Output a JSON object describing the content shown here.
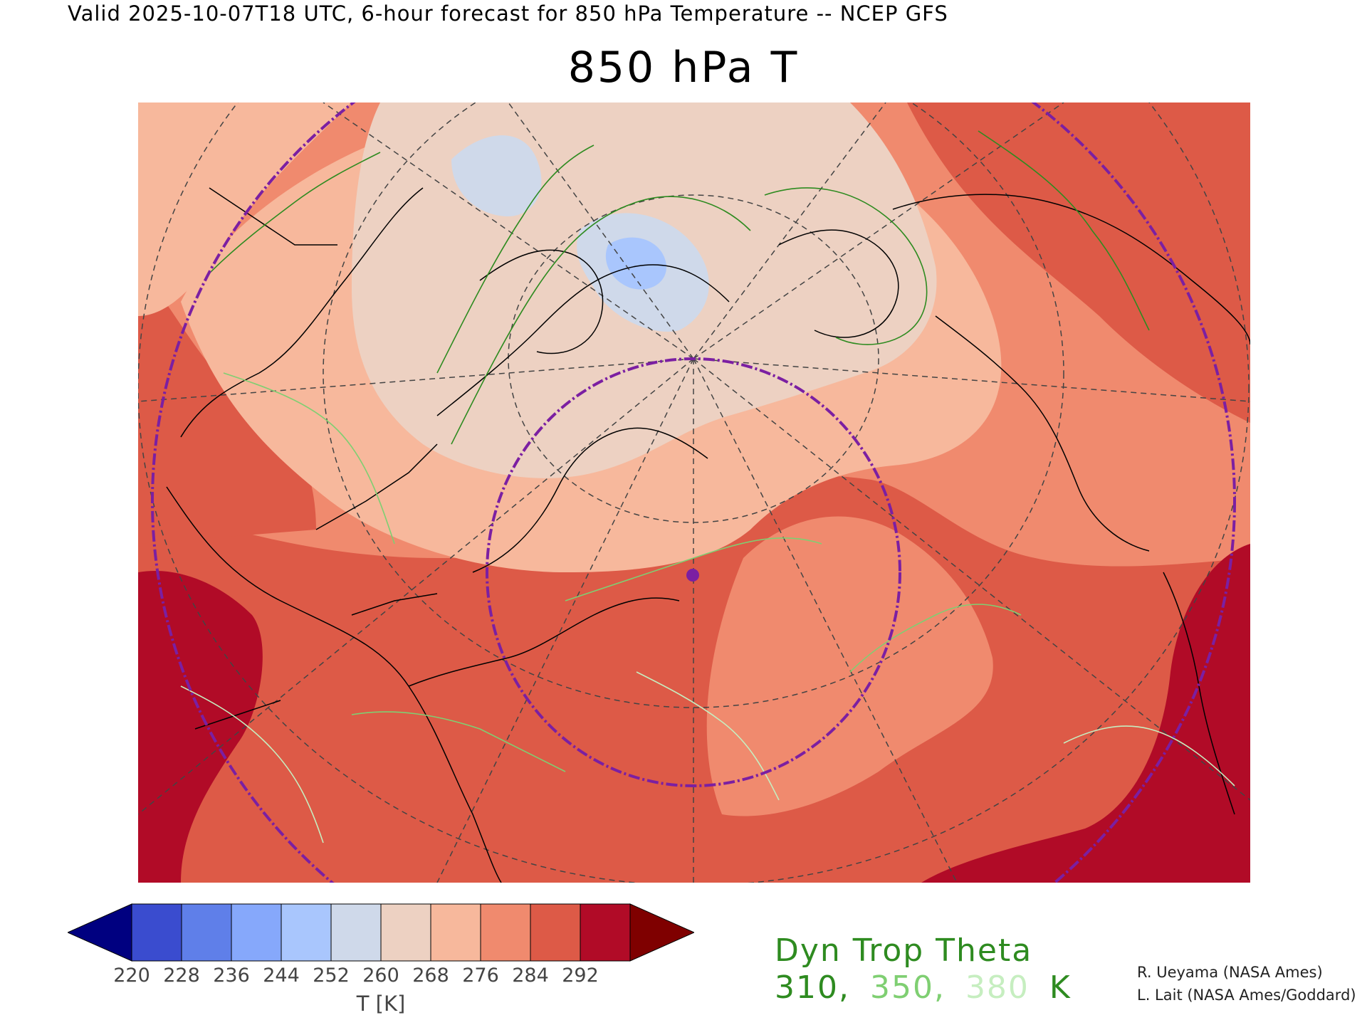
{
  "header": "Valid 2025-10-07T18 UTC, 6-hour forecast for 850 hPa Temperature -- NCEP GFS",
  "title": "850 hPa T",
  "colorbar": {
    "ticks": [
      "220",
      "228",
      "236",
      "244",
      "252",
      "260",
      "268",
      "276",
      "284",
      "292"
    ],
    "unit": "T [K]",
    "colors": [
      "#000080",
      "#3a4ccf",
      "#5f7fe9",
      "#86a8fb",
      "#a9c6fd",
      "#cfd9ea",
      "#edd1c2",
      "#f7b89c",
      "#f08a6e",
      "#dd5a47",
      "#b10b27",
      "#7f0000"
    ]
  },
  "legend": {
    "title": "Dyn Trop Theta",
    "values": [
      "310,",
      "350,",
      "380",
      "K"
    ],
    "value_colors": [
      "#2e8b20",
      "#7fcf72",
      "#c6eec0",
      "#2e8b20"
    ]
  },
  "credits": [
    "R. Ueyama (NASA Ames)",
    "L. Lait (NASA Ames/Goddard)"
  ],
  "map_style": {
    "ring_color": "#7b1fa2",
    "marker_color": "#7b1fa2",
    "coast_color": "#000000",
    "grid_color": "#444444"
  }
}
